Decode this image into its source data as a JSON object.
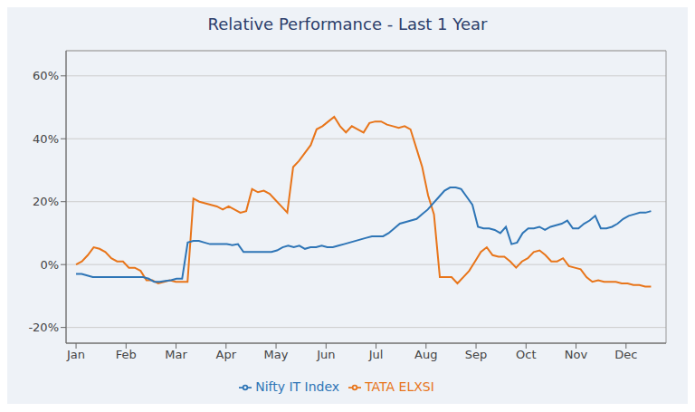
{
  "chart_data": {
    "type": "line",
    "title": "Relative Performance - Last 1 Year",
    "xlim": [
      -0.2,
      11.8
    ],
    "xticks": [
      {
        "value": 0,
        "label": "Jan"
      },
      {
        "value": 1,
        "label": "Feb"
      },
      {
        "value": 2,
        "label": "Mar"
      },
      {
        "value": 3,
        "label": "Apr"
      },
      {
        "value": 4,
        "label": "May"
      },
      {
        "value": 5,
        "label": "Jun"
      },
      {
        "value": 6,
        "label": "Jul"
      },
      {
        "value": 7,
        "label": "Aug"
      },
      {
        "value": 8,
        "label": "Sep"
      },
      {
        "value": 9,
        "label": "Oct"
      },
      {
        "value": 10,
        "label": "Nov"
      },
      {
        "value": 11,
        "label": "Dec"
      }
    ],
    "ylim": [
      -0.25,
      0.68
    ],
    "yticks": [
      {
        "value": -0.2,
        "label": "-20%"
      },
      {
        "value": 0.0,
        "label": "0%"
      },
      {
        "value": 0.2,
        "label": "20%"
      },
      {
        "value": 0.4,
        "label": "40%"
      },
      {
        "value": 0.6,
        "label": "60%"
      }
    ],
    "grid": true,
    "legend": "bottom",
    "series": [
      {
        "name": "TATA ELXSI",
        "color": "#E8751A",
        "x": [
          0,
          0.1173,
          0.2347,
          0.352,
          0.4694,
          0.5867,
          0.7041,
          0.8214,
          0.9388,
          1.0561,
          1.1735,
          1.2908,
          1.4082,
          1.5255,
          1.6429,
          1.7602,
          1.8776,
          1.9949,
          2.1122,
          2.2296,
          2.3469,
          2.4643,
          2.5816,
          2.699,
          2.8163,
          2.9337,
          3.051,
          3.1684,
          3.2857,
          3.4031,
          3.5204,
          3.6378,
          3.7551,
          3.8724,
          3.9898,
          4.1071,
          4.2245,
          4.3418,
          4.4592,
          4.5765,
          4.6939,
          4.8112,
          4.9286,
          5.0459,
          5.1633,
          5.2806,
          5.398,
          5.5153,
          5.6327,
          5.75,
          5.8673,
          5.9847,
          6.102,
          6.2194,
          6.3367,
          6.4541,
          6.5714,
          6.6888,
          6.8061,
          6.9235,
          7.0408,
          7.1582,
          7.2755,
          7.3929,
          7.5102,
          7.6276,
          7.7449,
          7.8622,
          7.9796,
          8.0969,
          8.2143,
          8.3316,
          8.449,
          8.5663,
          8.6837,
          8.801,
          8.9184,
          9.0357,
          9.1531,
          9.2704,
          9.3878,
          9.5051,
          9.6224,
          9.7398,
          9.8571,
          9.9745,
          10.0918,
          10.2092,
          10.3265,
          10.4439,
          10.5612,
          10.6786,
          10.7959,
          10.9133,
          11.0306,
          11.148,
          11.2653,
          11.3827,
          11.5
        ],
        "values": [
          0.0,
          0.01,
          0.03,
          0.055,
          0.05,
          0.04,
          0.02,
          0.01,
          0.01,
          -0.01,
          -0.01,
          -0.02,
          -0.05,
          -0.05,
          -0.06,
          -0.055,
          -0.05,
          -0.055,
          -0.055,
          -0.055,
          0.21,
          0.2,
          0.195,
          0.19,
          0.185,
          0.175,
          0.185,
          0.175,
          0.165,
          0.17,
          0.24,
          0.23,
          0.235,
          0.225,
          0.205,
          0.185,
          0.165,
          0.31,
          0.33,
          0.355,
          0.38,
          0.43,
          0.44,
          0.455,
          0.47,
          0.44,
          0.42,
          0.44,
          0.43,
          0.42,
          0.45,
          0.455,
          0.455,
          0.445,
          0.44,
          0.435,
          0.44,
          0.43,
          0.37,
          0.31,
          0.22,
          0.16,
          -0.04,
          -0.04,
          -0.04,
          -0.06,
          -0.04,
          -0.02,
          0.01,
          0.04,
          0.055,
          0.03,
          0.025,
          0.025,
          0.01,
          -0.01,
          0.01,
          0.02,
          0.04,
          0.045,
          0.03,
          0.01,
          0.01,
          0.02,
          -0.005,
          -0.01,
          -0.015,
          -0.04,
          -0.055,
          -0.05,
          -0.055,
          -0.055,
          -0.055,
          -0.06,
          -0.06,
          -0.065,
          -0.065,
          -0.07,
          -0.07
        ]
      },
      {
        "name": "Nifty IT Index",
        "color": "#2E75B6",
        "x": [
          0,
          0.1117,
          0.2233,
          0.335,
          0.4466,
          0.5583,
          0.6699,
          0.7816,
          0.8932,
          1.0049,
          1.1165,
          1.2282,
          1.3398,
          1.4515,
          1.5631,
          1.6748,
          1.7864,
          1.8981,
          2.0097,
          2.1214,
          2.233,
          2.3447,
          2.4563,
          2.568,
          2.6796,
          2.7913,
          2.9029,
          3.0146,
          3.1262,
          3.2379,
          3.3495,
          3.4612,
          3.5728,
          3.6845,
          3.7961,
          3.9078,
          4.0194,
          4.1311,
          4.2427,
          4.3544,
          4.466,
          4.5777,
          4.6893,
          4.801,
          4.9126,
          5.0243,
          5.1359,
          5.2476,
          5.3592,
          5.4709,
          5.5825,
          5.6942,
          5.8058,
          5.9175,
          6.0291,
          6.1408,
          6.2524,
          6.3641,
          6.4757,
          6.5874,
          6.699,
          6.8107,
          6.9223,
          7.034,
          7.1456,
          7.2573,
          7.3689,
          7.4806,
          7.5922,
          7.7039,
          7.8155,
          7.9272,
          8.0388,
          8.1505,
          8.2621,
          8.3738,
          8.4854,
          8.5971,
          8.7087,
          8.8204,
          8.932,
          9.0437,
          9.1553,
          9.267,
          9.3786,
          9.4903,
          9.6019,
          9.7136,
          9.8252,
          9.9369,
          10.0485,
          10.1602,
          10.2718,
          10.3835,
          10.4951,
          10.6068,
          10.7184,
          10.8301,
          10.9417,
          11.0534,
          11.165,
          11.2767,
          11.3883,
          11.5
        ],
        "values": [
          -0.03,
          -0.03,
          -0.035,
          -0.04,
          -0.04,
          -0.04,
          -0.04,
          -0.04,
          -0.04,
          -0.04,
          -0.04,
          -0.04,
          -0.04,
          -0.045,
          -0.055,
          -0.055,
          -0.052,
          -0.05,
          -0.045,
          -0.045,
          0.07,
          0.075,
          0.075,
          0.07,
          0.065,
          0.065,
          0.065,
          0.065,
          0.062,
          0.065,
          0.04,
          0.04,
          0.04,
          0.04,
          0.04,
          0.04,
          0.045,
          0.055,
          0.06,
          0.055,
          0.06,
          0.05,
          0.055,
          0.055,
          0.06,
          0.055,
          0.055,
          0.06,
          0.065,
          0.07,
          0.075,
          0.08,
          0.085,
          0.09,
          0.09,
          0.09,
          0.1,
          0.115,
          0.13,
          0.135,
          0.14,
          0.145,
          0.16,
          0.175,
          0.195,
          0.215,
          0.235,
          0.245,
          0.245,
          0.24,
          0.215,
          0.19,
          0.12,
          0.115,
          0.115,
          0.11,
          0.1,
          0.12,
          0.065,
          0.07,
          0.1,
          0.115,
          0.115,
          0.12,
          0.11,
          0.12,
          0.125,
          0.13,
          0.14,
          0.115,
          0.115,
          0.13,
          0.14,
          0.155,
          0.115,
          0.115,
          0.12,
          0.13,
          0.145,
          0.155,
          0.16,
          0.165,
          0.165,
          0.17
        ]
      }
    ]
  }
}
